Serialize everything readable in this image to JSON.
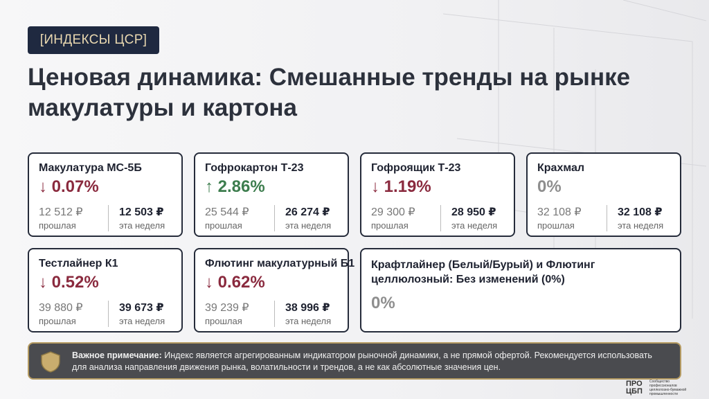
{
  "header": {
    "tag": "[ИНДЕКСЫ ЦСР]",
    "title": "Ценовая динамика: Смешанные тренды на рынке макулатуры и картона"
  },
  "cards": [
    {
      "name": "Макулатура МС-5Б",
      "change": "↓ 0.07%",
      "color": "#8a2a3e",
      "previous": "12 512 ₽",
      "previous_label": "прошлая",
      "current": "12 503 ₽",
      "current_label": "эта неделя"
    },
    {
      "name": "Гофрокартон Т-23",
      "change": "↑ 2.86%",
      "color": "#3d7d4e",
      "previous": "25 544 ₽",
      "previous_label": "прошлая",
      "current": "26 274 ₽",
      "current_label": "эта неделя"
    },
    {
      "name": "Гофроящик Т-23",
      "change": "↓ 1.19%",
      "color": "#8a2a3e",
      "previous": "29 300 ₽",
      "previous_label": "прошлая",
      "current": "28 950 ₽",
      "current_label": "эта неделя"
    },
    {
      "name": "Крахмал",
      "change": "0%",
      "color": "#8e8e8e",
      "previous": "32 108 ₽",
      "previous_label": "прошлая",
      "current": "32 108 ₽",
      "current_label": "эта неделя"
    },
    {
      "name": "Тестлайнер К1",
      "change": "↓ 0.52%",
      "color": "#8a2a3e",
      "previous": "39 880 ₽",
      "previous_label": "прошлая",
      "current": "39 673 ₽",
      "current_label": "эта неделя"
    },
    {
      "name": "Флютинг макулатурный Б1",
      "change": "↓ 0.62%",
      "color": "#8a2a3e",
      "previous": "39 239 ₽",
      "previous_label": "прошлая",
      "current": "38 996 ₽",
      "current_label": "эта неделя"
    }
  ],
  "wide_card": {
    "name": "Крафтлайнер (Белый/Бурый) и Флютинг целлюлозный: Без изменений (0%)",
    "change": "0%",
    "color": "#8e8e8e"
  },
  "note": {
    "label": "Важное примечание:",
    "text": "Индекс является агрегированным индикатором рыночной динамики, а не прямой офертой. Рекомендуется использовать для анализа направления движения рынка, волатильности и трендов, а не как абсолютные значения цен."
  },
  "logo": {
    "mark": "ПРО ЦБП",
    "caption": "Сообщество профессионалов целлюлозно-бумажной промышленности"
  }
}
